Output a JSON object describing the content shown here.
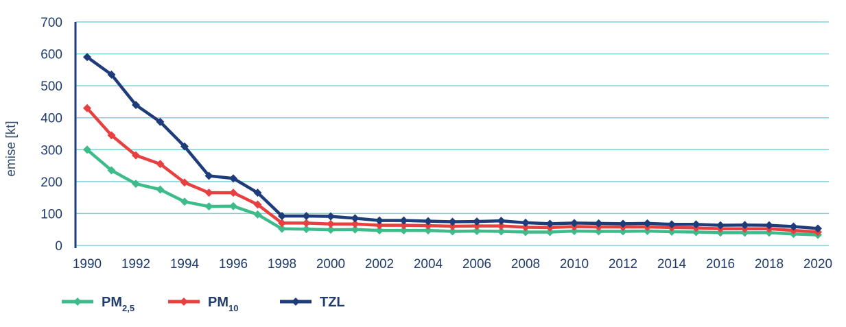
{
  "chart_data": {
    "type": "line",
    "ylabel": "emise [kt]",
    "xlabel": "",
    "ylim": [
      0,
      700
    ],
    "xlim": [
      1990,
      2020
    ],
    "yticks": [
      "0",
      "100",
      "200",
      "300",
      "400",
      "500",
      "600",
      "700"
    ],
    "xticks": [
      "1990",
      "1992",
      "1994",
      "1996",
      "1998",
      "2000",
      "2002",
      "2004",
      "2006",
      "2008",
      "2010",
      "2012",
      "2014",
      "2016",
      "2018",
      "2020"
    ],
    "grid": "horizontal",
    "legend_position": "bottom-left",
    "x": [
      1990,
      1991,
      1992,
      1993,
      1994,
      1995,
      1996,
      1997,
      1998,
      1999,
      2000,
      2001,
      2002,
      2003,
      2004,
      2005,
      2006,
      2007,
      2008,
      2009,
      2010,
      2011,
      2012,
      2013,
      2014,
      2015,
      2016,
      2017,
      2018,
      2019,
      2020
    ],
    "series": [
      {
        "name_main": "PM",
        "name_sub": "2,5",
        "color": "#3dbb8a",
        "values": [
          300,
          235,
          193,
          175,
          137,
          122,
          123,
          97,
          52,
          51,
          49,
          50,
          47,
          47,
          47,
          44,
          45,
          44,
          42,
          42,
          45,
          44,
          44,
          45,
          43,
          42,
          40,
          40,
          40,
          36,
          33
        ]
      },
      {
        "name_main": "PM",
        "name_sub": "10",
        "color": "#e84040",
        "values": [
          430,
          345,
          282,
          255,
          197,
          165,
          165,
          128,
          70,
          70,
          67,
          67,
          63,
          63,
          62,
          60,
          61,
          61,
          57,
          56,
          59,
          58,
          58,
          58,
          56,
          55,
          52,
          52,
          52,
          47,
          42
        ]
      },
      {
        "name_main": "TZL",
        "name_sub": "",
        "color": "#1f3c7a",
        "values": [
          590,
          535,
          440,
          387,
          310,
          218,
          210,
          165,
          92,
          92,
          91,
          85,
          78,
          78,
          76,
          74,
          75,
          77,
          71,
          68,
          70,
          69,
          68,
          69,
          66,
          66,
          63,
          64,
          63,
          59,
          53
        ]
      }
    ]
  }
}
